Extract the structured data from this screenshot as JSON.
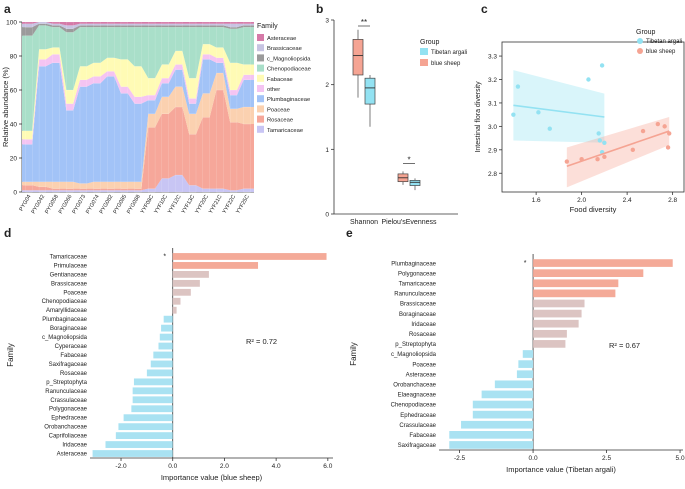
{
  "colors": {
    "asteraceae": "#d57aa8",
    "brassicaceae": "#c7c4e2",
    "c_magnoliopsida": "#9b9b9b",
    "chenopodiaceae": "#a9dfc9",
    "fabaceae": "#fffbb5",
    "other": "#f4c4f2",
    "plumbaginaceae": "#a2c3f7",
    "poaceae": "#fbd1b0",
    "rosaceae": "#f6a79a",
    "tamaricaceae": "#c8c5f4",
    "tibetan": "#93e2f2",
    "bluesheep": "#f5a493",
    "pos_bar": "#f4aa98",
    "pos_bar_light": "#dcc4c2",
    "neg_bar": "#a9e2f2"
  },
  "chart_data": [
    {
      "panel": "a",
      "type": "bar",
      "stacked": true,
      "ylabel": "Relative abundance (%)",
      "ylim": [
        0,
        100
      ],
      "yticks": [
        "0",
        "20",
        "40",
        "60",
        "80",
        "100"
      ],
      "legend_title": "Family",
      "categories": [
        "PYG04",
        "PYG042",
        "PYG058",
        "PYG066",
        "PYG073",
        "PYG074",
        "PYG082",
        "PYG085",
        "PYG088",
        "YYF08C",
        "YYF10C",
        "YYF12C",
        "YYF13C",
        "YYF20C",
        "YYF21C",
        "YYF22C",
        "YYF25C"
      ],
      "series": [
        {
          "name": "Tamaricaceae",
          "key": "tamaricaceae",
          "values": [
            1,
            1,
            1,
            1,
            1,
            1,
            1,
            1,
            1,
            2,
            8,
            10,
            4,
            2,
            2,
            1,
            2
          ]
        },
        {
          "name": "Rosaceae",
          "key": "rosaceae",
          "values": [
            3,
            2,
            1,
            1,
            1,
            1,
            1,
            1,
            1,
            36,
            38,
            40,
            30,
            42,
            58,
            40,
            38
          ]
        },
        {
          "name": "Poaceae",
          "key": "poaceae",
          "values": [
            2,
            3,
            4,
            4,
            3,
            4,
            4,
            4,
            4,
            8,
            10,
            12,
            12,
            14,
            10,
            8,
            10
          ]
        },
        {
          "name": "Plumbaginaceae",
          "key": "plumbaginaceae",
          "values": [
            22,
            68,
            70,
            42,
            57,
            58,
            62,
            52,
            46,
            8,
            8,
            10,
            6,
            20,
            6,
            8,
            16
          ]
        },
        {
          "name": "other",
          "key": "other",
          "values": [
            3,
            4,
            5,
            4,
            4,
            4,
            3,
            4,
            4,
            3,
            3,
            3,
            3,
            3,
            3,
            3,
            3
          ]
        },
        {
          "name": "Fabaceae",
          "key": "fabaceae",
          "values": [
            5,
            6,
            4,
            8,
            8,
            8,
            8,
            16,
            18,
            10,
            8,
            8,
            12,
            6,
            6,
            16,
            6
          ]
        },
        {
          "name": "Chenopodiaceae",
          "key": "chenopodiaceae",
          "values": [
            56,
            14,
            12,
            34,
            23,
            21,
            18,
            19,
            23,
            30,
            22,
            14,
            30,
            10,
            12,
            20,
            22
          ]
        },
        {
          "name": "c_Magnoliopsida",
          "key": "c_magnoliopsida",
          "values": [
            5,
            1,
            1,
            2,
            1,
            1,
            1,
            1,
            1,
            1,
            1,
            1,
            1,
            1,
            1,
            1,
            1
          ]
        },
        {
          "name": "Brassicaceae",
          "key": "brassicaceae",
          "values": [
            2,
            1,
            1,
            2,
            1,
            1,
            1,
            1,
            1,
            1,
            1,
            1,
            1,
            1,
            1,
            2,
            1
          ]
        },
        {
          "name": "Asteraceae",
          "key": "asteraceae",
          "values": [
            1,
            0,
            1,
            2,
            1,
            1,
            1,
            1,
            1,
            1,
            1,
            1,
            1,
            1,
            1,
            1,
            1
          ]
        }
      ],
      "legend": [
        "Asteraceae",
        "Brassicaceae",
        "c_Magnoliopsida",
        "Chenopodiaceae",
        "Fabaceae",
        "other",
        "Plumbaginaceae",
        "Poaceae",
        "Rosaceae",
        "Tamaricaceae"
      ]
    },
    {
      "panel": "b",
      "type": "box",
      "categories": [
        "Shannon",
        "Pielou'sEvenness"
      ],
      "ylim": [
        0,
        3
      ],
      "yticks": [
        "0",
        "1",
        "2",
        "3"
      ],
      "legend_title": "Group",
      "groups": [
        "Tibetan argali",
        "blue sheep"
      ],
      "boxes": [
        {
          "category": "Shannon",
          "group": "blue sheep",
          "min": 1.8,
          "q1": 2.15,
          "median": 2.45,
          "q3": 2.7,
          "max": 2.85
        },
        {
          "category": "Shannon",
          "group": "Tibetan argali",
          "min": 1.35,
          "q1": 1.7,
          "median": 1.95,
          "q3": 2.1,
          "max": 2.15
        },
        {
          "category": "Pielou'sEvenness",
          "group": "blue sheep",
          "min": 0.45,
          "q1": 0.5,
          "median": 0.56,
          "q3": 0.62,
          "max": 0.66
        },
        {
          "category": "Pielou'sEvenness",
          "group": "Tibetan argali",
          "min": 0.37,
          "q1": 0.44,
          "median": 0.49,
          "q3": 0.52,
          "max": 0.55
        }
      ],
      "significance": [
        "**",
        "*"
      ]
    },
    {
      "panel": "c",
      "type": "scatter",
      "xlabel": "Food diversity",
      "ylabel": "Intestinal flora diversity",
      "xlim": [
        1.3,
        2.9
      ],
      "ylim": [
        2.72,
        3.36
      ],
      "xticks": [
        "1.6",
        "2.0",
        "2.4",
        "2.8"
      ],
      "yticks": [
        "2.8",
        "2.9",
        "3.0",
        "3.1",
        "3.2",
        "3.3"
      ],
      "legend_title": "Group",
      "series": [
        {
          "name": "Tibetan argali",
          "key": "tibetan",
          "points": [
            [
              1.4,
              3.05
            ],
            [
              1.44,
              3.17
            ],
            [
              1.62,
              3.06
            ],
            [
              1.72,
              2.99
            ],
            [
              2.06,
              3.2
            ],
            [
              2.15,
              2.97
            ],
            [
              2.18,
              3.26
            ],
            [
              2.18,
              2.89
            ],
            [
              2.2,
              2.93
            ],
            [
              2.16,
              2.94
            ]
          ],
          "fit": [
            [
              1.4,
              3.09
            ],
            [
              2.2,
              3.04
            ]
          ]
        },
        {
          "name": "blue sheep",
          "key": "bluesheep",
          "points": [
            [
              1.87,
              2.85
            ],
            [
              2.0,
              2.86
            ],
            [
              2.14,
              2.86
            ],
            [
              2.2,
              2.87
            ],
            [
              2.45,
              2.9
            ],
            [
              2.54,
              2.98
            ],
            [
              2.67,
              3.01
            ],
            [
              2.73,
              3.0
            ],
            [
              2.76,
              2.91
            ],
            [
              2.77,
              2.97
            ]
          ],
          "fit": [
            [
              1.87,
              2.83
            ],
            [
              2.77,
              2.98
            ]
          ]
        }
      ]
    },
    {
      "panel": "d",
      "type": "bar",
      "orientation": "horizontal",
      "xlabel": "Importance value (blue sheep)",
      "ylabel": "Family",
      "xlim": [
        -3.2,
        6.2
      ],
      "xticks": [
        -2,
        0,
        2,
        4,
        6
      ],
      "xtick_labels": [
        "-2.0",
        "0.0",
        "2.0",
        "4.0",
        "6.0"
      ],
      "annotation": "R² = 0.72",
      "marker": "*",
      "categories": [
        "Tamaricaceae",
        "Primulaceae",
        "Gentianaceae",
        "Brassicaceae",
        "Poaceae",
        "Chenopodiaceae",
        "Amaryllidaceae",
        "Plumbaginaceae",
        "Boraginaceae",
        "c_Magnoliopsida",
        "Cyperaceae",
        "Fabaceae",
        "Saxifragaceae",
        "Rosaceae",
        "p_Streptophyta",
        "Ranunculaceae",
        "Crassulaceae",
        "Polygonaceae",
        "Ephedraceae",
        "Orobanchaceae",
        "Caprifoliaceae",
        "Iridaceae",
        "Asteraceae"
      ],
      "values": [
        5.95,
        3.3,
        1.4,
        1.05,
        0.7,
        0.3,
        0.15,
        -0.35,
        -0.45,
        -0.5,
        -0.55,
        -0.75,
        -0.85,
        -1.0,
        -1.5,
        -1.55,
        -1.55,
        -1.6,
        -1.9,
        -2.1,
        -2.2,
        -2.6,
        -3.1
      ]
    },
    {
      "panel": "e",
      "type": "bar",
      "orientation": "horizontal",
      "xlabel": "Importance value (Tibetan argali)",
      "ylabel": "Family",
      "xlim": [
        -3.2,
        5.1
      ],
      "xticks": [
        -2.5,
        0,
        2.5,
        5
      ],
      "xtick_labels": [
        "-2.5",
        "0.0",
        "2.5",
        "5.0"
      ],
      "annotation": "R² = 0.67",
      "marker": "*",
      "categories": [
        "Plumbaginaceae",
        "Polygonaceae",
        "Tamaricaceae",
        "Ranunculaceae",
        "Brassicaceae",
        "Boraginaceae",
        "Iridaceae",
        "Rosaceae",
        "p_Streptophyta",
        "c_Magnoliopsida",
        "Poaceae",
        "Asteraceae",
        "Orobanchaceae",
        "Elaeagnaceae",
        "Chenopodiaceae",
        "Ephedraceae",
        "Crassulaceae",
        "Fabaceae",
        "Saxifragaceae"
      ],
      "values": [
        4.75,
        3.75,
        2.9,
        2.8,
        1.75,
        1.65,
        1.55,
        1.15,
        1.1,
        -0.35,
        -0.5,
        -0.55,
        -1.3,
        -1.75,
        -2.05,
        -2.05,
        -2.45,
        -2.85,
        -2.85
      ]
    }
  ],
  "panel_labels": [
    "a",
    "b",
    "c",
    "d",
    "e"
  ]
}
